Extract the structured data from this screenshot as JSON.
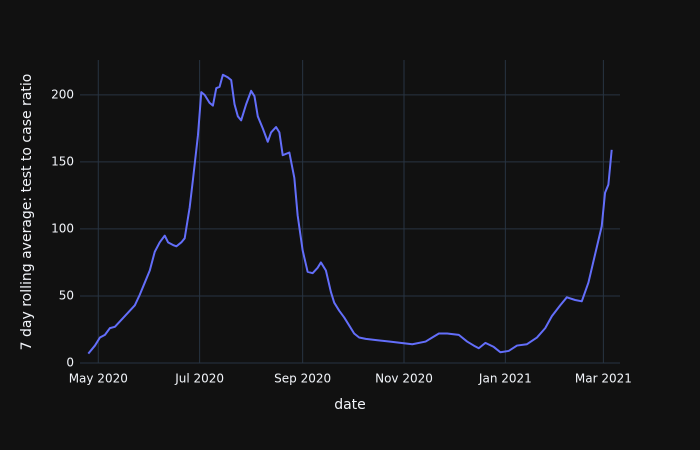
{
  "chart_data": {
    "type": "line",
    "x_label": "date",
    "y_label": "7 day rolling average: test to case ratio",
    "x": [
      "2020-04-25",
      "2020-04-29",
      "2020-05-02",
      "2020-05-05",
      "2020-05-08",
      "2020-05-11",
      "2020-05-14",
      "2020-05-17",
      "2020-05-20",
      "2020-05-23",
      "2020-05-26",
      "2020-05-29",
      "2020-06-01",
      "2020-06-04",
      "2020-06-07",
      "2020-06-10",
      "2020-06-12",
      "2020-06-15",
      "2020-06-17",
      "2020-06-20",
      "2020-06-22",
      "2020-06-25",
      "2020-06-27",
      "2020-06-30",
      "2020-07-02",
      "2020-07-04",
      "2020-07-07",
      "2020-07-09",
      "2020-07-11",
      "2020-07-13",
      "2020-07-15",
      "2020-07-18",
      "2020-07-20",
      "2020-07-22",
      "2020-07-24",
      "2020-07-26",
      "2020-07-29",
      "2020-08-01",
      "2020-08-03",
      "2020-08-05",
      "2020-08-08",
      "2020-08-11",
      "2020-08-13",
      "2020-08-16",
      "2020-08-18",
      "2020-08-20",
      "2020-08-24",
      "2020-08-27",
      "2020-08-29",
      "2020-09-01",
      "2020-09-04",
      "2020-09-07",
      "2020-09-10",
      "2020-09-12",
      "2020-09-15",
      "2020-09-18",
      "2020-09-20",
      "2020-09-23",
      "2020-09-26",
      "2020-09-29",
      "2020-10-02",
      "2020-10-05",
      "2020-10-09",
      "2020-10-16",
      "2020-10-23",
      "2020-10-30",
      "2020-11-06",
      "2020-11-14",
      "2020-11-18",
      "2020-11-22",
      "2020-11-27",
      "2020-12-04",
      "2020-12-09",
      "2020-12-13",
      "2020-12-16",
      "2020-12-20",
      "2020-12-25",
      "2020-12-29",
      "2021-01-03",
      "2021-01-08",
      "2021-01-14",
      "2021-01-20",
      "2021-01-25",
      "2021-01-29",
      "2021-02-03",
      "2021-02-07",
      "2021-02-12",
      "2021-02-16",
      "2021-02-20",
      "2021-02-24",
      "2021-02-28",
      "2021-03-02",
      "2021-03-04",
      "2021-03-06"
    ],
    "series": [
      {
        "color": "#636efa",
        "values": [
          7,
          13,
          19,
          21,
          26,
          27,
          31,
          35,
          39,
          43,
          51,
          60,
          69,
          83,
          90,
          95,
          90,
          88,
          87,
          90,
          93,
          116,
          137,
          170,
          202,
          200,
          194,
          192,
          205,
          206,
          215,
          213,
          211,
          193,
          184,
          181,
          193,
          203,
          199,
          184,
          175,
          165,
          172,
          176,
          172,
          155,
          157,
          138,
          110,
          84,
          68,
          67,
          71,
          75,
          69,
          53,
          45,
          39,
          34,
          28,
          22,
          19,
          18,
          17,
          16,
          15,
          14,
          16,
          19,
          22,
          22,
          21,
          16,
          13,
          11,
          15,
          12,
          8,
          9,
          13,
          14,
          19,
          26,
          35,
          43,
          49,
          47,
          46,
          60,
          81,
          102,
          127,
          133,
          159
        ]
      }
    ],
    "xlim": [
      "2020-04-20",
      "2021-03-11"
    ],
    "xticks": [
      {
        "value": "2020-05-01",
        "label": "May 2020"
      },
      {
        "value": "2020-07-01",
        "label": "Jul 2020"
      },
      {
        "value": "2020-09-01",
        "label": "Sep 2020"
      },
      {
        "value": "2020-11-01",
        "label": "Nov 2020"
      },
      {
        "value": "2021-01-01",
        "label": "Jan 2021"
      },
      {
        "value": "2021-03-01",
        "label": "Mar 2021"
      }
    ],
    "ylim": [
      0,
      226
    ],
    "yticks": [
      0,
      50,
      100,
      150,
      200
    ],
    "grid": true
  }
}
